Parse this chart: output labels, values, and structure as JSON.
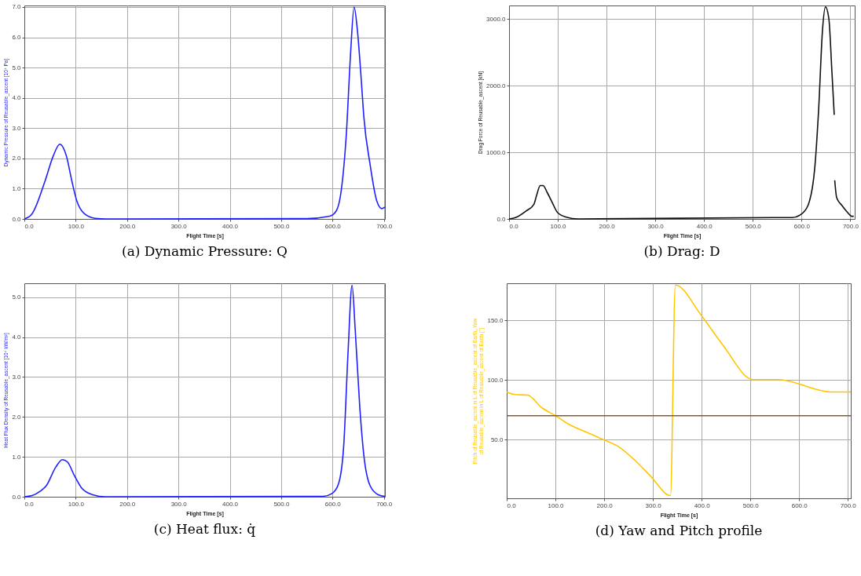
{
  "chart_data": [
    {
      "type": "line",
      "title": "(a) Dynamic Pressure: Q",
      "xlabel": "Flight Time [s]",
      "ylabel": "Dynamic Pressure of Reusable_ascent [10⁴ Pa]",
      "xlim": [
        0,
        702
      ],
      "ylim": [
        0,
        7.05
      ],
      "xticks": [
        {
          "value": 0,
          "label": "0.0"
        },
        {
          "value": 100,
          "label": "100.0"
        },
        {
          "value": 200,
          "label": "200.0"
        },
        {
          "value": 300,
          "label": "300.0"
        },
        {
          "value": 400,
          "label": "400.0"
        },
        {
          "value": 500,
          "label": "500.0"
        },
        {
          "value": 600,
          "label": "600.0"
        },
        {
          "value": 700,
          "label": "700.0"
        }
      ],
      "yticks": [
        {
          "value": 0,
          "label": "0.0"
        },
        {
          "value": 1,
          "label": "1.0"
        },
        {
          "value": 2,
          "label": "2.0"
        },
        {
          "value": 3,
          "label": "3.0"
        },
        {
          "value": 4,
          "label": "4.0"
        },
        {
          "value": 5,
          "label": "5.0"
        },
        {
          "value": 6,
          "label": "6.0"
        },
        {
          "value": 7,
          "label": "7.0"
        }
      ],
      "grid": true,
      "series": [
        {
          "color": "#1f1fff",
          "x": [
            0,
            15,
            41,
            56,
            69,
            82,
            92,
            102,
            117,
            138,
            160,
            550,
            594,
            607,
            617,
            627,
            635,
            642,
            648,
            656,
            661,
            673,
            686,
            696,
            702
          ],
          "values": [
            0,
            0.17,
            1.29,
            2.07,
            2.47,
            2.07,
            1.29,
            0.6,
            0.17,
            0.02,
            0,
            0.01,
            0.09,
            0.26,
            0.95,
            2.84,
            5.43,
            7.0,
            6.3,
            4.57,
            3.36,
            1.81,
            0.6,
            0.34,
            0.39
          ]
        }
      ]
    },
    {
      "type": "line",
      "title": "(b) Drag: D",
      "xlabel": "Flight Time [s]",
      "ylabel": "Drag Force of Reusable_ascent [kN]",
      "xlim": [
        0,
        709
      ],
      "ylim": [
        0,
        3200
      ],
      "xticks": [
        {
          "value": 0,
          "label": "0.0"
        },
        {
          "value": 100,
          "label": "100.0"
        },
        {
          "value": 200,
          "label": "200.0"
        },
        {
          "value": 300,
          "label": "300.0"
        },
        {
          "value": 400,
          "label": "400.0"
        },
        {
          "value": 500,
          "label": "500.0"
        },
        {
          "value": 600,
          "label": "600.0"
        },
        {
          "value": 700,
          "label": "700.0"
        }
      ],
      "yticks": [
        {
          "value": 0,
          "label": "0.0"
        },
        {
          "value": 1000,
          "label": "1000.0"
        },
        {
          "value": 2000,
          "label": "2000.0"
        },
        {
          "value": 3000,
          "label": "3000.0"
        }
      ],
      "grid": true,
      "series": [
        {
          "color": "#111111",
          "x": [
            0,
            13,
            35,
            51,
            56,
            64,
            70,
            78,
            89,
            99,
            116,
            143,
            543,
            581,
            597,
            613,
            627,
            635,
            643,
            649,
            656,
            662,
            667,
            667.5,
            668,
            672,
            683,
            694,
            703,
            707
          ],
          "values": [
            0,
            20,
            120,
            220,
            340,
            500,
            500,
            400,
            240,
            100,
            30,
            0,
            20,
            20,
            60,
            200,
            760,
            1640,
            2840,
            3180,
            3000,
            2240,
            1560,
            null,
            580,
            320,
            200,
            100,
            40,
            40
          ]
        }
      ]
    },
    {
      "type": "line",
      "title": "(c) Heat flux: q̇",
      "xlabel": "Flight Time [s]",
      "ylabel": "Heat Flux Density of Reusable_ascent [10⁴ kW/m²]",
      "xlim": [
        0,
        702
      ],
      "ylim": [
        0,
        5.35
      ],
      "xticks": [
        {
          "value": 0,
          "label": "0.0"
        },
        {
          "value": 100,
          "label": "100.0"
        },
        {
          "value": 200,
          "label": "200.0"
        },
        {
          "value": 300,
          "label": "300.0"
        },
        {
          "value": 400,
          "label": "400.0"
        },
        {
          "value": 500,
          "label": "500.0"
        },
        {
          "value": 600,
          "label": "600.0"
        },
        {
          "value": 700,
          "label": "700.0"
        }
      ],
      "yticks": [
        {
          "value": 0,
          "label": "0.0"
        },
        {
          "value": 1,
          "label": "1.0"
        },
        {
          "value": 2,
          "label": "2.0"
        },
        {
          "value": 3,
          "label": "3.0"
        },
        {
          "value": 4,
          "label": "4.0"
        },
        {
          "value": 5,
          "label": "5.0"
        }
      ],
      "grid": true,
      "series": [
        {
          "color": "#1f1fff",
          "x": [
            0,
            15,
            31,
            43,
            61,
            74,
            84,
            97,
            112,
            133,
            158,
            540,
            582,
            599,
            612,
            622,
            630,
            638,
            644,
            653,
            661,
            673,
            689,
            702
          ],
          "values": [
            0,
            0.03,
            0.14,
            0.28,
            0.74,
            0.93,
            0.87,
            0.54,
            0.21,
            0.05,
            0,
            0.01,
            0.01,
            0.08,
            0.34,
            1.33,
            3.57,
            5.3,
            4.22,
            2.25,
            1.03,
            0.28,
            0.05,
            0.01
          ]
        }
      ]
    },
    {
      "type": "line",
      "title": "(d) Yaw and Pitch profile",
      "xlabel": "Flight Time [s]",
      "ylabel": "Pitch of Reusable_ascent in L of Reusable_ascent of Earth, Yaw of Reusable_ascent in L of Reusable_ascent of Earth [°]",
      "xlim": [
        0,
        706
      ],
      "ylim": [
        0.7,
        181
      ],
      "xticks": [
        {
          "value": 0,
          "label": "0.0"
        },
        {
          "value": 100,
          "label": "100.0"
        },
        {
          "value": 200,
          "label": "200.0"
        },
        {
          "value": 300,
          "label": "300.0"
        },
        {
          "value": 400,
          "label": "400.0"
        },
        {
          "value": 500,
          "label": "500.0"
        },
        {
          "value": 600,
          "label": "600.0"
        },
        {
          "value": 700,
          "label": "700.0"
        }
      ],
      "yticks": [
        {
          "value": 50,
          "label": "50.0"
        },
        {
          "value": 100,
          "label": "100.0"
        },
        {
          "value": 150,
          "label": "150.0"
        }
      ],
      "grid": true,
      "series": [
        {
          "color": "#ffc600",
          "x": [
            0,
            17,
            43,
            72,
            100,
            125,
            168,
            199,
            231,
            263,
            295,
            336,
            346,
            400,
            443,
            506,
            557,
            665,
            706
          ],
          "values": [
            89.9,
            87.7,
            87.2,
            76.7,
            70,
            63.4,
            55.3,
            49.8,
            43.6,
            32.6,
            19.4,
            3,
            179.5,
            153.7,
            129.5,
            100.2,
            100.2,
            89.9,
            89.9
          ]
        },
        {
          "color": "#8b5a2b",
          "x": [
            0,
            706
          ],
          "values": [
            70,
            70
          ]
        }
      ]
    }
  ]
}
